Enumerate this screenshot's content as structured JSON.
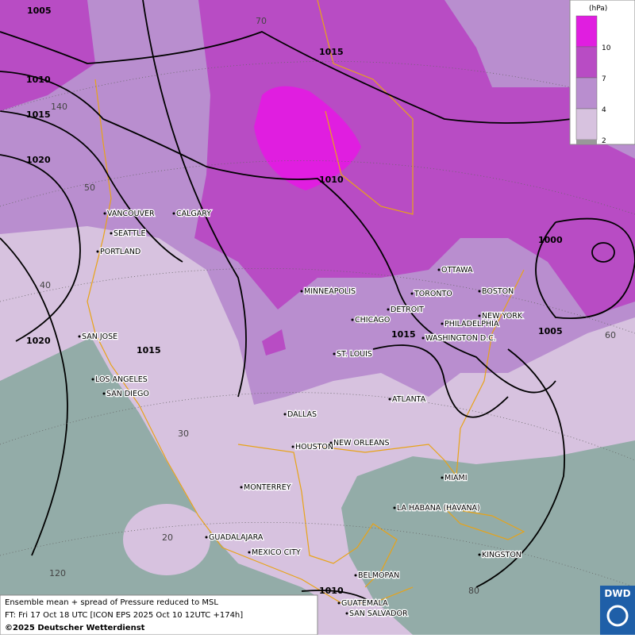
{
  "map": {
    "cities": [
      "VANCOUVER",
      "CALGARY",
      "SEATTLE",
      "PORTLAND",
      "MINNEAPOLIS",
      "OTTAWA",
      "TORONTO",
      "DETROIT",
      "BOSTON",
      "NEW YORK",
      "CHICAGO",
      "PHILADELPHIA",
      "WASHINGTON D.C.",
      "ST. LOUIS",
      "SAN JOSE",
      "LOS ANGELES",
      "SAN DIEGO",
      "DALLAS",
      "ATLANTA",
      "HOUSTON",
      "NEW ORLEANS",
      "MIAMI",
      "MONTERREY",
      "LA HABANA (HAVANA)",
      "GUADALAJARA",
      "MEXICO CITY",
      "KINGSTON",
      "BELMOPAN",
      "GUATEMALA",
      "SAN SALVADOR"
    ],
    "isobar_labels": [
      1005,
      1015,
      1010,
      1015,
      1020,
      1010,
      1000,
      1005,
      1015,
      1015,
      1020,
      1010
    ],
    "grid_labels": [
      70,
      140,
      50,
      40,
      30,
      20,
      120,
      60,
      80
    ],
    "legend": {
      "unit": "(hPa)",
      "levels": [
        10,
        7,
        4,
        2
      ],
      "colors": [
        "#e01ee0",
        "#b84cc4",
        "#b98ecf",
        "#d7c2df"
      ]
    },
    "footer": {
      "line1": "Ensemble mean + spread of Pressure reduced to MSL",
      "line2": "FT: Fri 17 Oct 18 UTC [ICON EPS 2025 Oct 10 12UTC +174h]",
      "line3": "©2025 Deutscher Wetterdienst"
    },
    "logo": "DWD"
  }
}
